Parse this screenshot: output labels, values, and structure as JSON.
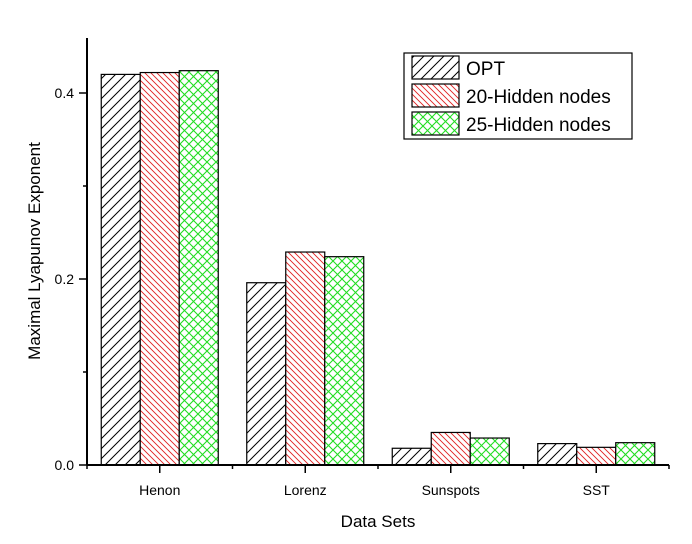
{
  "chart_data": {
    "type": "bar",
    "title": "",
    "xlabel": "Data Sets",
    "ylabel": "Maximal Lyapunov Exponent",
    "categories": [
      "Henon",
      "Lorenz",
      "Sunspots",
      "SST"
    ],
    "series": [
      {
        "name": "OPT",
        "values": [
          0.42,
          0.196,
          0.018,
          0.023
        ],
        "color": "#000000",
        "pattern": "forward-diagonal"
      },
      {
        "name": "20-Hidden nodes",
        "values": [
          0.422,
          0.229,
          0.035,
          0.019
        ],
        "color": "#e02020",
        "pattern": "backward-diagonal"
      },
      {
        "name": "25-Hidden nodes",
        "values": [
          0.424,
          0.224,
          0.029,
          0.024
        ],
        "color": "#22dd22",
        "pattern": "crosshatch"
      }
    ],
    "ylim": [
      0,
      0.46
    ],
    "yticks": [
      {
        "value": 0.0,
        "label": "0.0"
      },
      {
        "value": 0.2,
        "label": "0.2"
      },
      {
        "value": 0.4,
        "label": "0.4"
      }
    ],
    "yminor_ticks": [
      0.1,
      0.3
    ],
    "grid": false,
    "legend_position": "upper right"
  }
}
